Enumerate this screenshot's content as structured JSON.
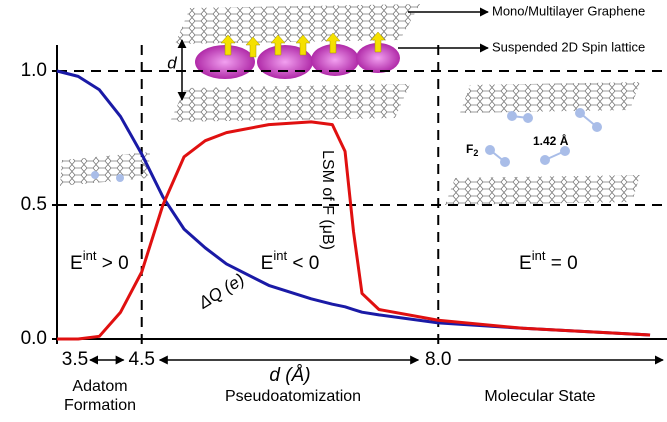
{
  "chart_data": {
    "type": "line",
    "x": [
      3.5,
      3.75,
      4.0,
      4.25,
      4.5,
      4.75,
      5.0,
      5.25,
      5.5,
      6.0,
      6.5,
      6.75,
      6.9,
      7.0,
      7.1,
      7.3,
      8.0,
      9.0,
      10.5
    ],
    "series": [
      {
        "name": "ΔQ (e)",
        "color": "#1a1aa6",
        "values": [
          1.0,
          0.98,
          0.93,
          0.83,
          0.69,
          0.53,
          0.41,
          0.34,
          0.28,
          0.2,
          0.15,
          0.13,
          0.12,
          0.11,
          0.1,
          0.09,
          0.06,
          0.04,
          0.015
        ]
      },
      {
        "name": "LSM of F (μB)",
        "color": "#e01010",
        "values": [
          0.0,
          0.0,
          0.01,
          0.1,
          0.25,
          0.5,
          0.68,
          0.74,
          0.77,
          0.8,
          0.81,
          0.8,
          0.7,
          0.4,
          0.17,
          0.11,
          0.07,
          0.04,
          0.015
        ]
      }
    ],
    "xlim": [
      3.5,
      10.7
    ],
    "ylim": [
      0,
      1.0
    ],
    "xticks": [
      3.5,
      4.5,
      {
        "value": 8.0,
        "label": "8.0"
      }
    ],
    "yticks": [
      {
        "value": 0,
        "label": "0.0"
      },
      {
        "value": 0.5,
        "label": "0.5"
      },
      {
        "value": 1.0,
        "label": "1.0"
      }
    ],
    "dashed_y": [
      0.5,
      1.0
    ],
    "dashed_x": [
      4.5,
      8.0
    ],
    "xlabel": "d (Å)",
    "regions": [
      {
        "base": "E",
        "sup": "int",
        "rest": " > 0",
        "x": 4.0,
        "y": 0.28
      },
      {
        "base": "E",
        "sup": "int",
        "rest": " < 0",
        "x": 6.25,
        "y": 0.28
      },
      {
        "base": "E",
        "sup": "int",
        "rest": " = 0",
        "x": 9.3,
        "y": 0.28
      }
    ],
    "stages": [
      "Adatom",
      "Formation",
      "Pseudoatomization",
      "Molecular State"
    ],
    "annotations": {
      "top": "Mono/Multilayer Graphene",
      "spin": "Suspended 2D Spin lattice",
      "d": "d",
      "f2": "F",
      "f2sub": "2",
      "bond": "1.42 Å"
    }
  }
}
